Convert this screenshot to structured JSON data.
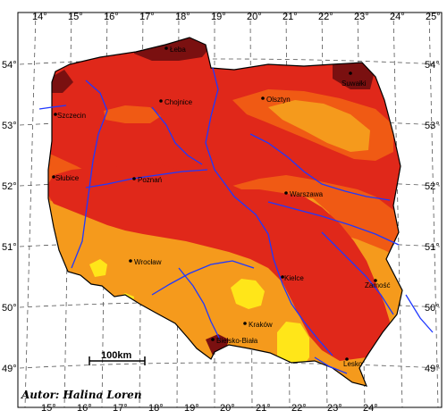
{
  "map": {
    "lon_labels_top": [
      "14°",
      "15°",
      "16°",
      "17°",
      "18°",
      "19°",
      "20°",
      "21°",
      "22°",
      "23°",
      "24°",
      "25°"
    ],
    "lon_labels_bottom": [
      "15°",
      "16°",
      "17°",
      "18°",
      "19°",
      "20°",
      "21°",
      "22°",
      "23°",
      "24°"
    ],
    "lat_labels_left": [
      "54°",
      "53°",
      "52°",
      "51°",
      "50°",
      "49°"
    ],
    "lat_labels_right": [
      "54°",
      "53°",
      "52°",
      "51°",
      "50°",
      "49°"
    ],
    "cities": [
      {
        "name": "Łeba"
      },
      {
        "name": "Suwałki"
      },
      {
        "name": "Szczecin"
      },
      {
        "name": "Chojnice"
      },
      {
        "name": "Olsztyn"
      },
      {
        "name": "Słubice"
      },
      {
        "name": "Poznań"
      },
      {
        "name": "Warszawa"
      },
      {
        "name": "Wrocław"
      },
      {
        "name": "Kielce"
      },
      {
        "name": "Zamość"
      },
      {
        "name": "Kraków"
      },
      {
        "name": "Bielsko-Biała"
      },
      {
        "name": "Lesko"
      }
    ],
    "scale_bar": {
      "label": "100km"
    },
    "author": "Autor: Halina Loren",
    "colors": {
      "darkest": "#7a1010",
      "dark_red": "#e0281a",
      "red_orange": "#f05a14",
      "orange": "#f59a1c",
      "yellow": "#ffe619",
      "rivers": "#1f38ff",
      "grid": "#555555"
    }
  }
}
